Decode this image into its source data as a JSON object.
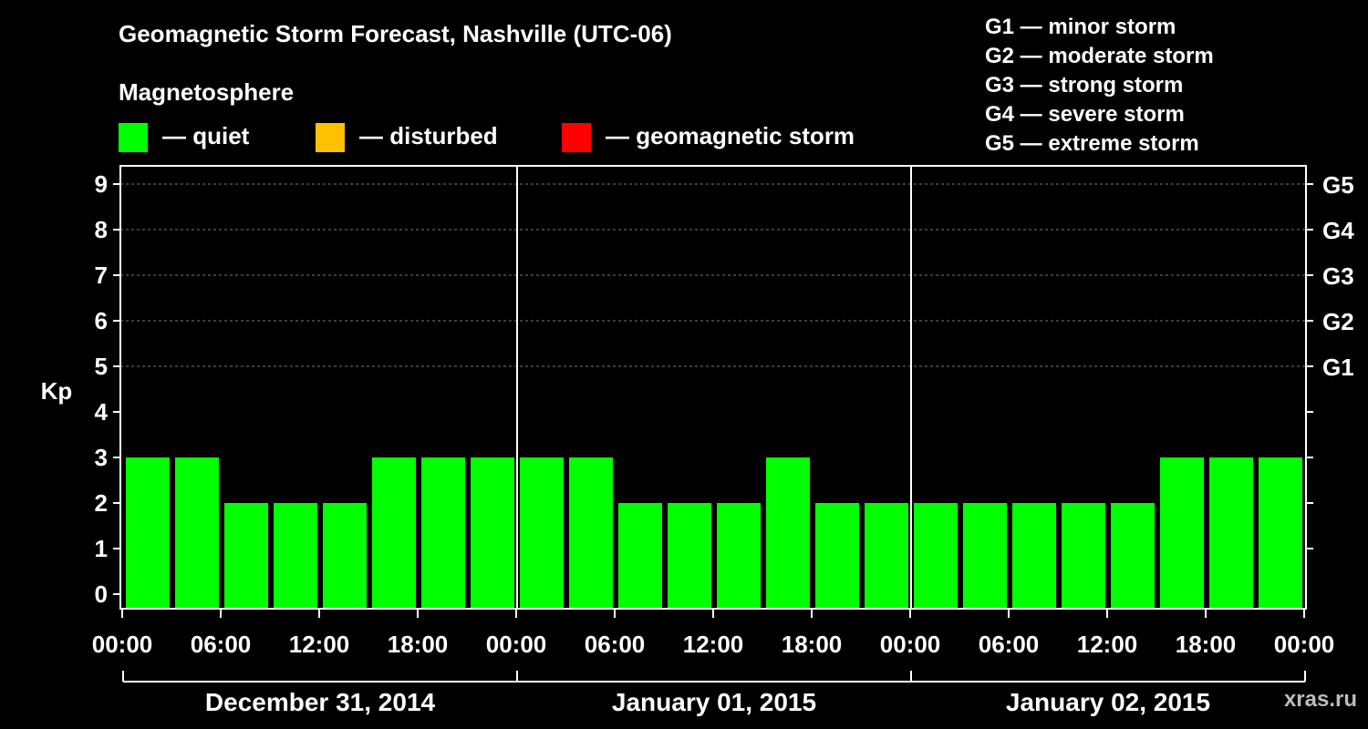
{
  "header": {
    "title": "Geomagnetic Storm Forecast, Nashville (UTC-06)",
    "subtitle": "Magnetosphere"
  },
  "legend": [
    {
      "label": "— quiet",
      "color": "#00ff00"
    },
    {
      "label": "— disturbed",
      "color": "#ffc000"
    },
    {
      "label": "— geomagnetic storm",
      "color": "#ff0000"
    }
  ],
  "storm_scale": [
    {
      "level": "G1",
      "desc": "G1 — minor storm"
    },
    {
      "level": "G2",
      "desc": "G2 — moderate storm"
    },
    {
      "level": "G3",
      "desc": "G3 — strong storm"
    },
    {
      "level": "G4",
      "desc": "G4 — severe storm"
    },
    {
      "level": "G5",
      "desc": "G5 — extreme storm"
    }
  ],
  "watermark": "xras.ru",
  "chart_data": {
    "type": "bar",
    "title": "Geomagnetic Storm Forecast, Nashville (UTC-06)",
    "ylabel": "Kp",
    "ylim": [
      0,
      9
    ],
    "yticks": [
      "0",
      "1",
      "2",
      "3",
      "4",
      "5",
      "6",
      "7",
      "8",
      "9"
    ],
    "right_ticks": [
      {
        "kp": 5,
        "label": "G1"
      },
      {
        "kp": 6,
        "label": "G2"
      },
      {
        "kp": 7,
        "label": "G3"
      },
      {
        "kp": 8,
        "label": "G4"
      },
      {
        "kp": 9,
        "label": "G5"
      }
    ],
    "xtick_labels": [
      "00:00",
      "06:00",
      "12:00",
      "18:00",
      "00:00",
      "06:00",
      "12:00",
      "18:00",
      "00:00",
      "06:00",
      "12:00",
      "18:00",
      "00:00"
    ],
    "days": [
      "December 31, 2014",
      "January 01, 2015",
      "January 02, 2015"
    ],
    "bar_color": "#00ff00",
    "values": [
      3,
      3,
      2,
      2,
      2,
      3,
      3,
      3,
      3,
      3,
      2,
      2,
      2,
      3,
      2,
      2,
      2,
      2,
      2,
      2,
      2,
      3,
      3,
      3
    ]
  }
}
